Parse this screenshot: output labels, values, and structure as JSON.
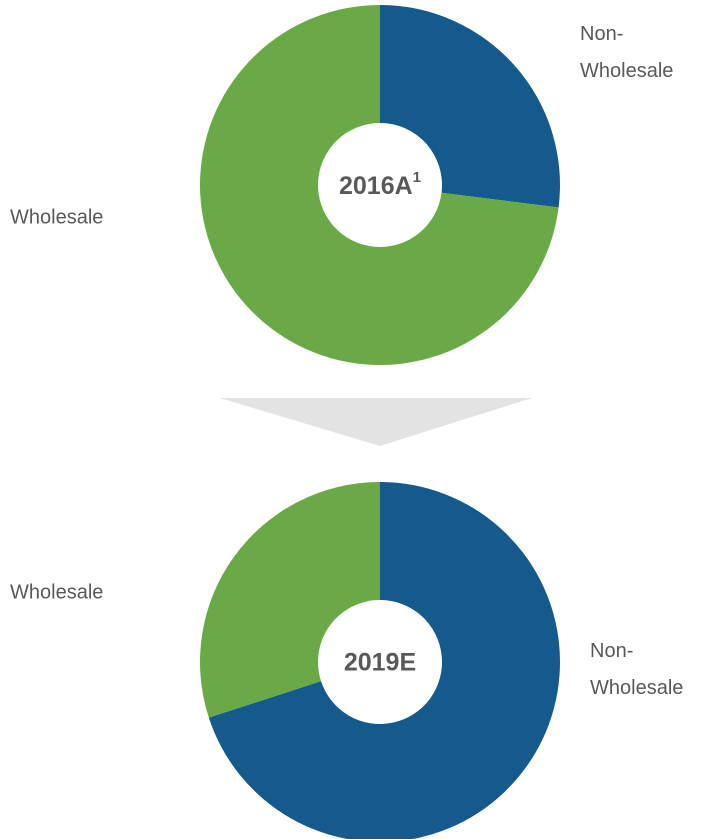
{
  "chart_data": [
    {
      "type": "pie",
      "donut": true,
      "title": "2016A",
      "title_superscript": "1",
      "categories": [
        "Non-Wholesale",
        "Wholesale"
      ],
      "values": [
        27,
        73
      ],
      "colors": [
        "#145a8c",
        "#6aaa46"
      ]
    },
    {
      "type": "pie",
      "donut": true,
      "title": "2019E",
      "categories": [
        "Non-Wholesale",
        "Wholesale"
      ],
      "values": [
        70,
        30
      ],
      "colors": [
        "#145a8c",
        "#6aaa46"
      ]
    }
  ]
}
